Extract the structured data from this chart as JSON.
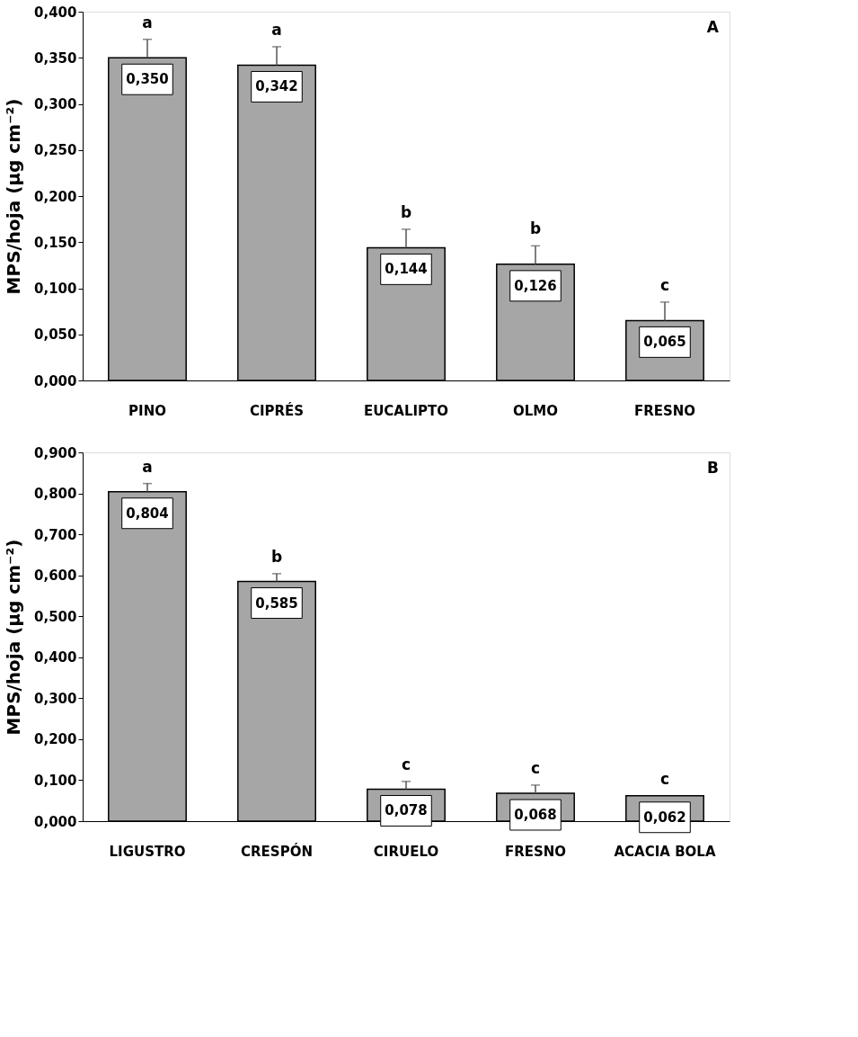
{
  "chart_data": [
    {
      "type": "bar",
      "ylabel": "MPS/hoja (µg cm⁻²)",
      "categories": [
        "PINO",
        "CIPRÉS",
        "EUCALIPTO",
        "OLMO",
        "FRESNO"
      ],
      "values": [
        0.35,
        0.342,
        0.144,
        0.126,
        0.065
      ],
      "color": "#a6a6a6",
      "errors": [
        [
          0.35,
          0.37
        ],
        [
          0.342,
          0.362
        ],
        [
          0.144,
          0.164
        ],
        [
          0.126,
          0.146
        ],
        [
          0.065,
          0.085
        ]
      ],
      "value_labels": [
        "0,350",
        "0,342",
        "0,144",
        "0,126",
        "0,065"
      ],
      "ylim": [
        0,
        0.4
      ],
      "yticks": [
        {
          "value": 0,
          "label": "0,000"
        },
        {
          "value": 0.05,
          "label": "0,050"
        },
        {
          "value": 0.1,
          "label": "0,100"
        },
        {
          "value": 0.15,
          "label": "0,150"
        },
        {
          "value": 0.2,
          "label": "0,200"
        },
        {
          "value": 0.25,
          "label": "0,250"
        },
        {
          "value": 0.3,
          "label": "0,300"
        },
        {
          "value": 0.35,
          "label": "0,350"
        },
        {
          "value": 0.4,
          "label": "0,400"
        }
      ],
      "grid": false,
      "annotations": [
        "A",
        {
          "text": "a",
          "x": "PINO",
          "y": 0.37
        },
        {
          "text": "a",
          "x": "CIPRÉS",
          "y": 0.362
        },
        {
          "text": "b",
          "x": "EUCALIPTO",
          "y": 0.164
        },
        {
          "text": "b",
          "x": "OLMO",
          "y": 0.146
        },
        {
          "text": "c",
          "x": "FRESNO",
          "y": 0.085
        }
      ]
    },
    {
      "type": "bar",
      "ylabel": "MPS/hoja (µg cm⁻²)",
      "categories": [
        "LIGUSTRO",
        "CRESPÓN",
        "CIRUELO",
        "FRESNO",
        "ACACIA BOLA"
      ],
      "values": [
        0.804,
        0.585,
        0.078,
        0.068,
        0.062
      ],
      "color": "#a6a6a6",
      "errors": [
        [
          0.804,
          0.824
        ],
        [
          0.585,
          0.604
        ],
        [
          0.078,
          0.097
        ],
        [
          0.068,
          0.088
        ],
        null
      ],
      "value_labels": [
        "0,804",
        "0,585",
        "0,078",
        "0,068",
        "0,062"
      ],
      "ylim": [
        0,
        0.9
      ],
      "yticks": [
        {
          "value": 0,
          "label": "0,000"
        },
        {
          "value": 0.1,
          "label": "0,100"
        },
        {
          "value": 0.2,
          "label": "0,200"
        },
        {
          "value": 0.3,
          "label": "0,300"
        },
        {
          "value": 0.4,
          "label": "0,400"
        },
        {
          "value": 0.5,
          "label": "0,500"
        },
        {
          "value": 0.6,
          "label": "0,600"
        },
        {
          "value": 0.7,
          "label": "0,700"
        },
        {
          "value": 0.8,
          "label": "0,800"
        },
        {
          "value": 0.9,
          "label": "0,900"
        }
      ],
      "grid": false,
      "annotations": [
        "B",
        {
          "text": "a",
          "x": "LIGUSTRO",
          "y": 0.824
        },
        {
          "text": "b",
          "x": "CRESPÓN",
          "y": 0.604
        },
        {
          "text": "c",
          "x": "CIRUELO",
          "y": 0.097
        },
        {
          "text": "c",
          "x": "FRESNO",
          "y": 0.088
        },
        {
          "text": "c",
          "x": "ACACIA BOLA",
          "y": 0.062
        }
      ]
    }
  ]
}
